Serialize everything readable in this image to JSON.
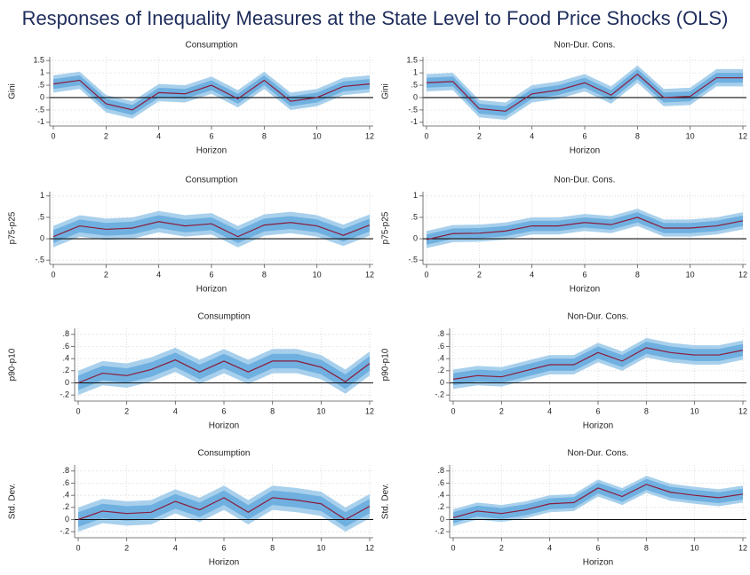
{
  "title": "Responses of Inequality Measures at the State Level to Food Price Shocks (OLS)",
  "chart_data": [
    {
      "type": "line",
      "title": "Consumption",
      "xlabel": "Horizon",
      "ylabel": "Gini",
      "x": [
        0,
        1,
        2,
        3,
        4,
        5,
        6,
        7,
        8,
        9,
        10,
        11,
        12
      ],
      "xlim": [
        0,
        12
      ],
      "xticks": [
        0,
        2,
        4,
        6,
        8,
        10,
        12
      ],
      "ylim": [
        -1.15,
        1.65
      ],
      "yticks": [
        1.5,
        1,
        {
          "value": 0.5,
          "label": ".5"
        },
        0,
        {
          "value": -0.5,
          "label": "-.5"
        },
        -1
      ],
      "grid": true,
      "zero_line": true,
      "color": "#8b1c3c",
      "values": [
        0.55,
        0.7,
        -0.25,
        -0.5,
        0.2,
        0.15,
        0.5,
        -0.05,
        0.7,
        -0.15,
        0.0,
        0.45,
        0.55
      ],
      "bands": [
        {
          "color": "#a8d0ec",
          "lower": [
            0.2,
            0.35,
            -0.6,
            -0.85,
            -0.15,
            -0.2,
            0.15,
            -0.4,
            0.35,
            -0.5,
            -0.35,
            0.1,
            0.2
          ],
          "upper": [
            0.9,
            1.05,
            0.1,
            -0.15,
            0.55,
            0.5,
            0.85,
            0.3,
            1.05,
            0.2,
            0.35,
            0.8,
            0.9
          ]
        },
        {
          "color": "#6fb0e0",
          "lower": [
            0.35,
            0.5,
            -0.45,
            -0.7,
            0,
            -0.05,
            0.3,
            -0.25,
            0.5,
            -0.35,
            -0.2,
            0.25,
            0.35
          ],
          "upper": [
            0.75,
            0.9,
            -0.05,
            -0.3,
            0.4,
            0.35,
            0.7,
            0.15,
            0.9,
            0.05,
            0.2,
            0.65,
            0.75
          ]
        }
      ]
    },
    {
      "type": "line",
      "title": "Non-Dur. Cons.",
      "xlabel": "Horizon",
      "ylabel": "Gini",
      "x": [
        0,
        1,
        2,
        3,
        4,
        5,
        6,
        7,
        8,
        9,
        10,
        11,
        12
      ],
      "xlim": [
        0,
        12
      ],
      "xticks": [
        0,
        2,
        4,
        6,
        8,
        10,
        12
      ],
      "ylim": [
        -1.15,
        1.65
      ],
      "yticks": [
        1.5,
        1,
        {
          "value": 0.5,
          "label": ".5"
        },
        0,
        {
          "value": -0.5,
          "label": "-.5"
        },
        -1
      ],
      "grid": true,
      "zero_line": true,
      "color": "#8b1c3c",
      "values": [
        0.6,
        0.65,
        -0.45,
        -0.55,
        0.15,
        0.3,
        0.6,
        0.1,
        0.95,
        0.0,
        0.05,
        0.8,
        0.8
      ],
      "bands": [
        {
          "color": "#a8d0ec",
          "lower": [
            0.25,
            0.3,
            -0.8,
            -0.9,
            -0.2,
            -0.05,
            0.25,
            -0.25,
            0.6,
            -0.35,
            -0.3,
            0.45,
            0.45
          ],
          "upper": [
            0.95,
            1.0,
            -0.1,
            -0.2,
            0.5,
            0.65,
            0.95,
            0.45,
            1.3,
            0.35,
            0.4,
            1.15,
            1.15
          ]
        },
        {
          "color": "#6fb0e0",
          "lower": [
            0.4,
            0.45,
            -0.65,
            -0.75,
            -0.05,
            0.1,
            0.4,
            -0.1,
            0.75,
            -0.2,
            -0.15,
            0.6,
            0.6
          ],
          "upper": [
            0.8,
            0.85,
            -0.25,
            -0.35,
            0.35,
            0.5,
            0.8,
            0.3,
            1.15,
            0.2,
            0.25,
            1.0,
            1.0
          ]
        }
      ]
    },
    {
      "type": "line",
      "title": "Consumption",
      "xlabel": "Horizon",
      "ylabel": "p75-p25",
      "x": [
        0,
        1,
        2,
        3,
        4,
        5,
        6,
        7,
        8,
        9,
        10,
        11,
        12
      ],
      "xlim": [
        0,
        12
      ],
      "xticks": [
        0,
        2,
        4,
        6,
        8,
        10,
        12
      ],
      "ylim": [
        -0.6,
        1.1
      ],
      "yticks": [
        1,
        {
          "value": 0.5,
          "label": ".5"
        },
        0,
        {
          "value": -0.5,
          "label": "-.5"
        }
      ],
      "grid": true,
      "zero_line": true,
      "color": "#8b1c3c",
      "values": [
        0.05,
        0.3,
        0.22,
        0.25,
        0.4,
        0.3,
        0.35,
        0.05,
        0.32,
        0.38,
        0.3,
        0.08,
        0.32
      ],
      "bands": [
        {
          "color": "#a8d0ec",
          "lower": [
            -0.2,
            0.05,
            -0.03,
            0,
            0.15,
            0.05,
            0.1,
            -0.2,
            0.07,
            0.13,
            0.05,
            -0.17,
            0.07
          ],
          "upper": [
            0.3,
            0.55,
            0.47,
            0.5,
            0.65,
            0.55,
            0.6,
            0.3,
            0.57,
            0.63,
            0.55,
            0.33,
            0.57
          ]
        },
        {
          "color": "#6fb0e0",
          "lower": [
            -0.1,
            0.15,
            0.07,
            0.1,
            0.25,
            0.15,
            0.2,
            -0.1,
            0.17,
            0.23,
            0.15,
            -0.07,
            0.17
          ],
          "upper": [
            0.2,
            0.45,
            0.37,
            0.4,
            0.55,
            0.45,
            0.5,
            0.2,
            0.47,
            0.53,
            0.45,
            0.23,
            0.47
          ]
        }
      ]
    },
    {
      "type": "line",
      "title": "Non-Dur. Cons.",
      "xlabel": "Horizon",
      "ylabel": "p75-p25",
      "x": [
        0,
        1,
        2,
        3,
        4,
        5,
        6,
        7,
        8,
        9,
        10,
        11,
        12
      ],
      "xlim": [
        0,
        12
      ],
      "xticks": [
        0,
        2,
        4,
        6,
        8,
        10,
        12
      ],
      "ylim": [
        -0.6,
        1.1
      ],
      "yticks": [
        1,
        {
          "value": 0.5,
          "label": ".5"
        },
        0,
        {
          "value": -0.5,
          "label": "-.5"
        }
      ],
      "grid": true,
      "zero_line": true,
      "color": "#8b1c3c",
      "values": [
        -0.02,
        0.12,
        0.13,
        0.18,
        0.3,
        0.3,
        0.38,
        0.33,
        0.5,
        0.25,
        0.25,
        0.3,
        0.42
      ],
      "bands": [
        {
          "color": "#a8d0ec",
          "lower": [
            -0.22,
            -0.08,
            -0.07,
            -0.02,
            0.1,
            0.1,
            0.18,
            0.13,
            0.3,
            0.05,
            0.05,
            0.1,
            0.22
          ],
          "upper": [
            0.18,
            0.32,
            0.33,
            0.38,
            0.5,
            0.5,
            0.58,
            0.53,
            0.7,
            0.45,
            0.45,
            0.5,
            0.62
          ]
        },
        {
          "color": "#6fb0e0",
          "lower": [
            -0.14,
            0,
            0.01,
            0.06,
            0.18,
            0.18,
            0.26,
            0.21,
            0.38,
            0.13,
            0.13,
            0.18,
            0.3
          ],
          "upper": [
            0.1,
            0.24,
            0.25,
            0.3,
            0.42,
            0.42,
            0.5,
            0.45,
            0.62,
            0.37,
            0.37,
            0.42,
            0.54
          ]
        }
      ]
    },
    {
      "type": "line",
      "title": "Consumption",
      "xlabel": "Horizon",
      "ylabel": "p90-p10",
      "x": [
        0,
        1,
        2,
        3,
        4,
        5,
        6,
        7,
        8,
        9,
        10,
        11,
        12
      ],
      "xlim": [
        0,
        12
      ],
      "xticks": [
        0,
        2,
        4,
        6,
        8,
        10,
        12
      ],
      "ylim": [
        -0.3,
        0.9
      ],
      "yticks": [
        {
          "value": 0.8,
          "label": ".8"
        },
        {
          "value": 0.6,
          "label": ".6"
        },
        {
          "value": 0.4,
          "label": ".4"
        },
        {
          "value": 0.2,
          "label": ".2"
        },
        0,
        {
          "value": -0.2,
          "label": "-.2"
        }
      ],
      "grid": true,
      "zero_line": true,
      "color": "#8b1c3c",
      "values": [
        0,
        0.16,
        0.12,
        0.22,
        0.38,
        0.18,
        0.36,
        0.18,
        0.36,
        0.36,
        0.26,
        0.02,
        0.32
      ],
      "bands": [
        {
          "color": "#a8d0ec",
          "lower": [
            -0.2,
            -0.04,
            -0.08,
            0.02,
            0.18,
            -0.02,
            0.16,
            -0.02,
            0.16,
            0.16,
            0.06,
            -0.18,
            0.12
          ],
          "upper": [
            0.2,
            0.36,
            0.32,
            0.42,
            0.58,
            0.38,
            0.56,
            0.38,
            0.56,
            0.56,
            0.46,
            0.22,
            0.52
          ]
        },
        {
          "color": "#6fb0e0",
          "lower": [
            -0.12,
            0.04,
            0,
            0.1,
            0.26,
            0.06,
            0.24,
            0.06,
            0.24,
            0.24,
            0.14,
            -0.1,
            0.2
          ],
          "upper": [
            0.12,
            0.28,
            0.24,
            0.34,
            0.5,
            0.3,
            0.48,
            0.3,
            0.48,
            0.48,
            0.38,
            0.14,
            0.44
          ]
        }
      ]
    },
    {
      "type": "line",
      "title": "Non-Dur. Cons.",
      "xlabel": "Horizon",
      "ylabel": "p90-p10",
      "x": [
        0,
        1,
        2,
        3,
        4,
        5,
        6,
        7,
        8,
        9,
        10,
        11,
        12
      ],
      "xlim": [
        0,
        12
      ],
      "xticks": [
        0,
        2,
        4,
        6,
        8,
        10,
        12
      ],
      "ylim": [
        -0.3,
        0.9
      ],
      "yticks": [
        {
          "value": 0.8,
          "label": ".8"
        },
        {
          "value": 0.6,
          "label": ".6"
        },
        {
          "value": 0.4,
          "label": ".4"
        },
        {
          "value": 0.2,
          "label": ".2"
        },
        0,
        {
          "value": -0.2,
          "label": "-.2"
        }
      ],
      "grid": true,
      "zero_line": true,
      "color": "#8b1c3c",
      "values": [
        0.06,
        0.12,
        0.1,
        0.2,
        0.3,
        0.3,
        0.5,
        0.36,
        0.58,
        0.5,
        0.46,
        0.46,
        0.54
      ],
      "bands": [
        {
          "color": "#a8d0ec",
          "lower": [
            -0.1,
            -0.04,
            -0.06,
            0.04,
            0.14,
            0.14,
            0.34,
            0.2,
            0.42,
            0.34,
            0.3,
            0.3,
            0.38
          ],
          "upper": [
            0.22,
            0.28,
            0.26,
            0.36,
            0.46,
            0.46,
            0.66,
            0.52,
            0.74,
            0.66,
            0.62,
            0.62,
            0.7
          ]
        },
        {
          "color": "#6fb0e0",
          "lower": [
            -0.04,
            0.02,
            0,
            0.1,
            0.2,
            0.2,
            0.4,
            0.26,
            0.48,
            0.4,
            0.36,
            0.36,
            0.44
          ],
          "upper": [
            0.16,
            0.22,
            0.2,
            0.3,
            0.4,
            0.4,
            0.6,
            0.46,
            0.68,
            0.6,
            0.56,
            0.56,
            0.64
          ]
        }
      ]
    },
    {
      "type": "line",
      "title": "Consumption",
      "xlabel": "Horizon",
      "ylabel": "Std. Dev.",
      "x": [
        0,
        1,
        2,
        3,
        4,
        5,
        6,
        7,
        8,
        9,
        10,
        11,
        12
      ],
      "xlim": [
        0,
        12
      ],
      "xticks": [
        0,
        2,
        4,
        6,
        8,
        10,
        12
      ],
      "ylim": [
        -0.3,
        0.9
      ],
      "yticks": [
        {
          "value": 0.8,
          "label": ".8"
        },
        {
          "value": 0.6,
          "label": ".6"
        },
        {
          "value": 0.4,
          "label": ".4"
        },
        {
          "value": 0.2,
          "label": ".2"
        },
        0,
        {
          "value": -0.2,
          "label": "-.2"
        }
      ],
      "grid": true,
      "zero_line": true,
      "color": "#8b1c3c",
      "values": [
        0,
        0.14,
        0.1,
        0.12,
        0.3,
        0.16,
        0.36,
        0.12,
        0.36,
        0.32,
        0.26,
        0,
        0.22
      ],
      "bands": [
        {
          "color": "#a8d0ec",
          "lower": [
            -0.2,
            -0.06,
            -0.1,
            -0.08,
            0.1,
            -0.04,
            0.16,
            -0.08,
            0.16,
            0.12,
            0.06,
            -0.2,
            0.02
          ],
          "upper": [
            0.2,
            0.34,
            0.3,
            0.32,
            0.5,
            0.36,
            0.56,
            0.32,
            0.56,
            0.52,
            0.46,
            0.2,
            0.42
          ]
        },
        {
          "color": "#6fb0e0",
          "lower": [
            -0.12,
            0.02,
            -0.02,
            0,
            0.18,
            0.04,
            0.24,
            0,
            0.24,
            0.2,
            0.14,
            -0.12,
            0.1
          ],
          "upper": [
            0.12,
            0.26,
            0.22,
            0.24,
            0.42,
            0.28,
            0.48,
            0.24,
            0.48,
            0.44,
            0.38,
            0.12,
            0.34
          ]
        }
      ]
    },
    {
      "type": "line",
      "title": "Non-Dur. Cons.",
      "xlabel": "Horizon",
      "ylabel": "Std. Dev.",
      "x": [
        0,
        1,
        2,
        3,
        4,
        5,
        6,
        7,
        8,
        9,
        10,
        11,
        12
      ],
      "xlim": [
        0,
        12
      ],
      "xticks": [
        0,
        2,
        4,
        6,
        8,
        10,
        12
      ],
      "ylim": [
        -0.3,
        0.9
      ],
      "yticks": [
        {
          "value": 0.8,
          "label": ".8"
        },
        {
          "value": 0.6,
          "label": ".6"
        },
        {
          "value": 0.4,
          "label": ".4"
        },
        {
          "value": 0.2,
          "label": ".2"
        },
        0,
        {
          "value": -0.2,
          "label": "-.2"
        }
      ],
      "grid": true,
      "zero_line": true,
      "color": "#8b1c3c",
      "values": [
        0.03,
        0.14,
        0.1,
        0.16,
        0.26,
        0.28,
        0.52,
        0.38,
        0.58,
        0.45,
        0.4,
        0.36,
        0.42
      ],
      "bands": [
        {
          "color": "#a8d0ec",
          "lower": [
            -0.11,
            0,
            -0.04,
            0.02,
            0.12,
            0.14,
            0.38,
            0.24,
            0.44,
            0.31,
            0.26,
            0.22,
            0.28
          ],
          "upper": [
            0.17,
            0.28,
            0.24,
            0.3,
            0.4,
            0.42,
            0.66,
            0.52,
            0.72,
            0.59,
            0.54,
            0.5,
            0.56
          ]
        },
        {
          "color": "#6fb0e0",
          "lower": [
            -0.06,
            0.05,
            0.01,
            0.07,
            0.17,
            0.19,
            0.43,
            0.29,
            0.49,
            0.36,
            0.31,
            0.27,
            0.33
          ],
          "upper": [
            0.12,
            0.23,
            0.19,
            0.25,
            0.35,
            0.37,
            0.61,
            0.47,
            0.67,
            0.54,
            0.49,
            0.45,
            0.51
          ]
        }
      ]
    }
  ]
}
